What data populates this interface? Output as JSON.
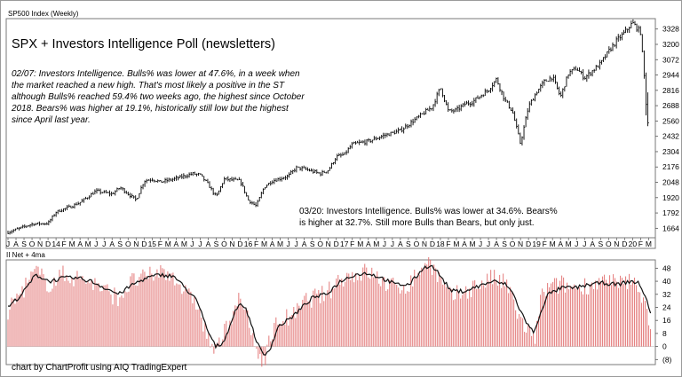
{
  "chart_data": [
    {
      "type": "ohlc",
      "panel_label": "SP500 Index (Weekly)",
      "title": "SPX + Investors Intelligence Poll (newsletters)",
      "annotation_1": [
        "02/07: Investors Intelligence. Bulls% was lower at 47.6%, in a week when",
        "the market reached a new high. That's most likely a positive in the ST",
        "although Bulls% reached 59.4% two weeks ago, the highest since October",
        "2018. Bears% was higher at 19.1%, historically still low but the highest",
        "since April last year."
      ],
      "annotation_2": [
        "03/20: Investors Intelligence. Bulls% was lower at 34.6%. Bears%",
        "is higher at 32.7%. Still more Bulls than Bears, but only just."
      ],
      "y_ticks": [
        3328,
        3200,
        3072,
        2944,
        2816,
        2688,
        2560,
        2432,
        2304,
        2176,
        2048,
        1920,
        1792,
        1664
      ],
      "ylim": [
        1600,
        3400
      ],
      "x_ticks": [
        "J",
        "A",
        "S",
        "O",
        "N",
        "D",
        "14",
        "F",
        "M",
        "A",
        "M",
        "J",
        "J",
        "A",
        "S",
        "O",
        "N",
        "D",
        "15",
        "F",
        "M",
        "A",
        "M",
        "J",
        "J",
        "A",
        "S",
        "O",
        "N",
        "D",
        "16",
        "F",
        "M",
        "A",
        "M",
        "J",
        "J",
        "A",
        "S",
        "O",
        "N",
        "D",
        "17",
        "F",
        "M",
        "A",
        "M",
        "J",
        "J",
        "A",
        "S",
        "O",
        "N",
        "D",
        "18",
        "F",
        "M",
        "A",
        "M",
        "J",
        "J",
        "A",
        "S",
        "O",
        "N",
        "D",
        "19",
        "F",
        "M",
        "A",
        "M",
        "J",
        "J",
        "A",
        "S",
        "O",
        "N",
        "D",
        "20",
        "F",
        "M"
      ],
      "x_start": "2013-07",
      "anchors": [
        [
          0,
          1630
        ],
        [
          3,
          1700
        ],
        [
          5,
          1705
        ],
        [
          6,
          1800
        ],
        [
          8,
          1850
        ],
        [
          9,
          1880
        ],
        [
          11,
          1975
        ],
        [
          13,
          1950
        ],
        [
          14,
          2005
        ],
        [
          16,
          1900
        ],
        [
          17,
          2060
        ],
        [
          18,
          2075
        ],
        [
          19,
          2050
        ],
        [
          21,
          2080
        ],
        [
          23,
          2120
        ],
        [
          24,
          2110
        ],
        [
          25,
          2030
        ],
        [
          26,
          1925
        ],
        [
          27,
          2075
        ],
        [
          29,
          2060
        ],
        [
          30,
          1900
        ],
        [
          31,
          1850
        ],
        [
          32,
          2010
        ],
        [
          33,
          2060
        ],
        [
          35,
          2100
        ],
        [
          36,
          2170
        ],
        [
          37,
          2160
        ],
        [
          39,
          2120
        ],
        [
          40,
          2150
        ],
        [
          41,
          2260
        ],
        [
          42,
          2280
        ],
        [
          43,
          2365
        ],
        [
          45,
          2390
        ],
        [
          47,
          2440
        ],
        [
          49,
          2480
        ],
        [
          51,
          2580
        ],
        [
          53,
          2680
        ],
        [
          54,
          2840
        ],
        [
          55,
          2640
        ],
        [
          56,
          2650
        ],
        [
          57,
          2700
        ],
        [
          58,
          2720
        ],
        [
          60,
          2820
        ],
        [
          61,
          2910
        ],
        [
          62,
          2740
        ],
        [
          63,
          2640
        ],
        [
          64,
          2370
        ],
        [
          65,
          2680
        ],
        [
          66,
          2800
        ],
        [
          67,
          2890
        ],
        [
          68,
          2930
        ],
        [
          69,
          2760
        ],
        [
          70,
          2960
        ],
        [
          71,
          3000
        ],
        [
          72,
          2920
        ],
        [
          73,
          2980
        ],
        [
          74,
          3040
        ],
        [
          75,
          3140
        ],
        [
          76,
          3230
        ],
        [
          77,
          3300
        ],
        [
          78,
          3380
        ],
        [
          79,
          3300
        ],
        [
          80,
          2480
        ]
      ]
    },
    {
      "type": "bar+line",
      "panel_label": "II Net + 4ma",
      "y_ticks": [
        48,
        40,
        32,
        24,
        16,
        8,
        0,
        "(8)"
      ],
      "ylim": [
        -10,
        52
      ],
      "anchors": [
        [
          0,
          22
        ],
        [
          2,
          34
        ],
        [
          4,
          46
        ],
        [
          6,
          38
        ],
        [
          8,
          44
        ],
        [
          10,
          42
        ],
        [
          12,
          40
        ],
        [
          14,
          34
        ],
        [
          16,
          30
        ],
        [
          18,
          40
        ],
        [
          20,
          42
        ],
        [
          22,
          46
        ],
        [
          24,
          44
        ],
        [
          26,
          30
        ],
        [
          27,
          30
        ],
        [
          28,
          16
        ],
        [
          29,
          4
        ],
        [
          30,
          -4
        ],
        [
          31,
          6
        ],
        [
          32,
          16
        ],
        [
          33,
          28
        ],
        [
          34,
          26
        ],
        [
          35,
          10
        ],
        [
          36,
          -4
        ],
        [
          37,
          -8
        ],
        [
          38,
          6
        ],
        [
          39,
          16
        ],
        [
          41,
          18
        ],
        [
          42,
          22
        ],
        [
          43,
          28
        ],
        [
          44,
          30
        ],
        [
          46,
          32
        ],
        [
          48,
          42
        ],
        [
          50,
          44
        ],
        [
          52,
          46
        ],
        [
          54,
          40
        ],
        [
          56,
          36
        ],
        [
          58,
          38
        ],
        [
          60,
          50
        ],
        [
          61,
          52
        ],
        [
          62,
          44
        ],
        [
          63,
          36
        ],
        [
          64,
          30
        ],
        [
          66,
          34
        ],
        [
          68,
          38
        ],
        [
          70,
          42
        ],
        [
          72,
          38
        ],
        [
          73,
          28
        ],
        [
          74,
          16
        ],
        [
          75,
          10
        ],
        [
          76,
          2
        ],
        [
          77,
          30
        ],
        [
          78,
          36
        ],
        [
          80,
          38
        ],
        [
          82,
          36
        ],
        [
          84,
          38
        ],
        [
          86,
          40
        ],
        [
          88,
          38
        ],
        [
          90,
          40
        ],
        [
          91,
          38
        ],
        [
          92,
          26
        ],
        [
          93,
          12
        ]
      ],
      "ma_anchors": [
        [
          0,
          24
        ],
        [
          2,
          32
        ],
        [
          4,
          44
        ],
        [
          6,
          40
        ],
        [
          8,
          42
        ],
        [
          10,
          42
        ],
        [
          12,
          40
        ],
        [
          14,
          36
        ],
        [
          16,
          32
        ],
        [
          18,
          38
        ],
        [
          20,
          42
        ],
        [
          22,
          44
        ],
        [
          24,
          43
        ],
        [
          26,
          34
        ],
        [
          27,
          30
        ],
        [
          28,
          20
        ],
        [
          29,
          8
        ],
        [
          30,
          0
        ],
        [
          31,
          2
        ],
        [
          32,
          12
        ],
        [
          33,
          24
        ],
        [
          34,
          26
        ],
        [
          35,
          16
        ],
        [
          36,
          2
        ],
        [
          37,
          -6
        ],
        [
          38,
          0
        ],
        [
          39,
          12
        ],
        [
          41,
          18
        ],
        [
          42,
          22
        ],
        [
          43,
          26
        ],
        [
          44,
          30
        ],
        [
          46,
          32
        ],
        [
          48,
          40
        ],
        [
          50,
          44
        ],
        [
          52,
          45
        ],
        [
          54,
          42
        ],
        [
          56,
          38
        ],
        [
          58,
          38
        ],
        [
          60,
          48
        ],
        [
          61,
          50
        ],
        [
          62,
          46
        ],
        [
          63,
          40
        ],
        [
          64,
          34
        ],
        [
          66,
          34
        ],
        [
          68,
          37
        ],
        [
          70,
          40
        ],
        [
          72,
          38
        ],
        [
          73,
          32
        ],
        [
          74,
          22
        ],
        [
          75,
          14
        ],
        [
          76,
          8
        ],
        [
          77,
          22
        ],
        [
          78,
          32
        ],
        [
          80,
          36
        ],
        [
          82,
          36
        ],
        [
          84,
          38
        ],
        [
          86,
          39
        ],
        [
          88,
          38
        ],
        [
          90,
          40
        ],
        [
          91,
          39
        ],
        [
          92,
          32
        ],
        [
          93,
          18
        ]
      ]
    }
  ],
  "credit": "chart by ChartProfit using AIQ TradingExpert"
}
